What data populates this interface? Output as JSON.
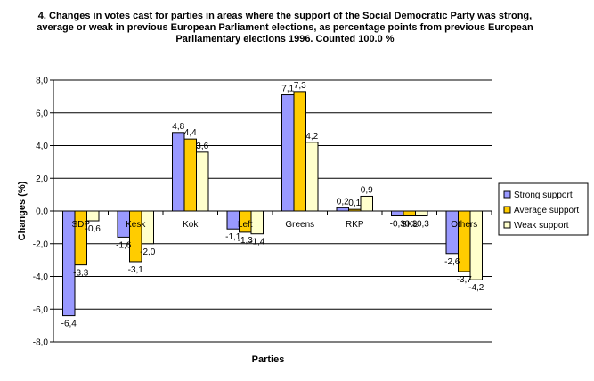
{
  "chart_data": {
    "type": "bar",
    "title": "4. Changes in votes cast for parties in areas where the support of the Social Democratic Party was strong, average or weak in previous European Parliament elections, as percentage points from previous European Parliamentary elections 1996. Counted 100.0 %",
    "xlabel": "Parties",
    "ylabel": "Changes (%)",
    "ylim": [
      -8,
      8
    ],
    "yticks": [
      "8,0",
      "6,0",
      "4,0",
      "2,0",
      "0,0",
      "-2,0",
      "-4,0",
      "-6,0",
      "-8,0"
    ],
    "categories": [
      "SDP",
      "Kesk",
      "Kok",
      "Left",
      "Greens",
      "RKP",
      "SKL",
      "Others"
    ],
    "series": [
      {
        "name": "Strong support",
        "color": "#9999ff",
        "values": [
          -6.4,
          -1.6,
          4.8,
          -1.1,
          7.1,
          0.2,
          -0.3,
          -2.6
        ],
        "labels": [
          "-6,4",
          "-1,6",
          "4,8",
          "-1,1",
          "7,1",
          "0,2",
          "-0,3",
          "-2,6"
        ]
      },
      {
        "name": "Average support",
        "color": "#ffcc00",
        "values": [
          -3.3,
          -3.1,
          4.4,
          -1.3,
          7.3,
          0.1,
          -0.3,
          -3.7
        ],
        "labels": [
          "-3,3",
          "-3,1",
          "4,4",
          "-1,3",
          "7,3",
          "0,1",
          "-0,3",
          "-3,7"
        ]
      },
      {
        "name": "Weak support",
        "color": "#ffffcc",
        "values": [
          -0.6,
          -2.0,
          3.6,
          -1.4,
          4.2,
          0.9,
          -0.3,
          -4.2
        ],
        "labels": [
          "-0,6",
          "-2,0",
          "3,6",
          "-1,4",
          "4,2",
          "0,9",
          "-0,3",
          "-4,2"
        ]
      }
    ],
    "grid": true,
    "legend": "right"
  }
}
